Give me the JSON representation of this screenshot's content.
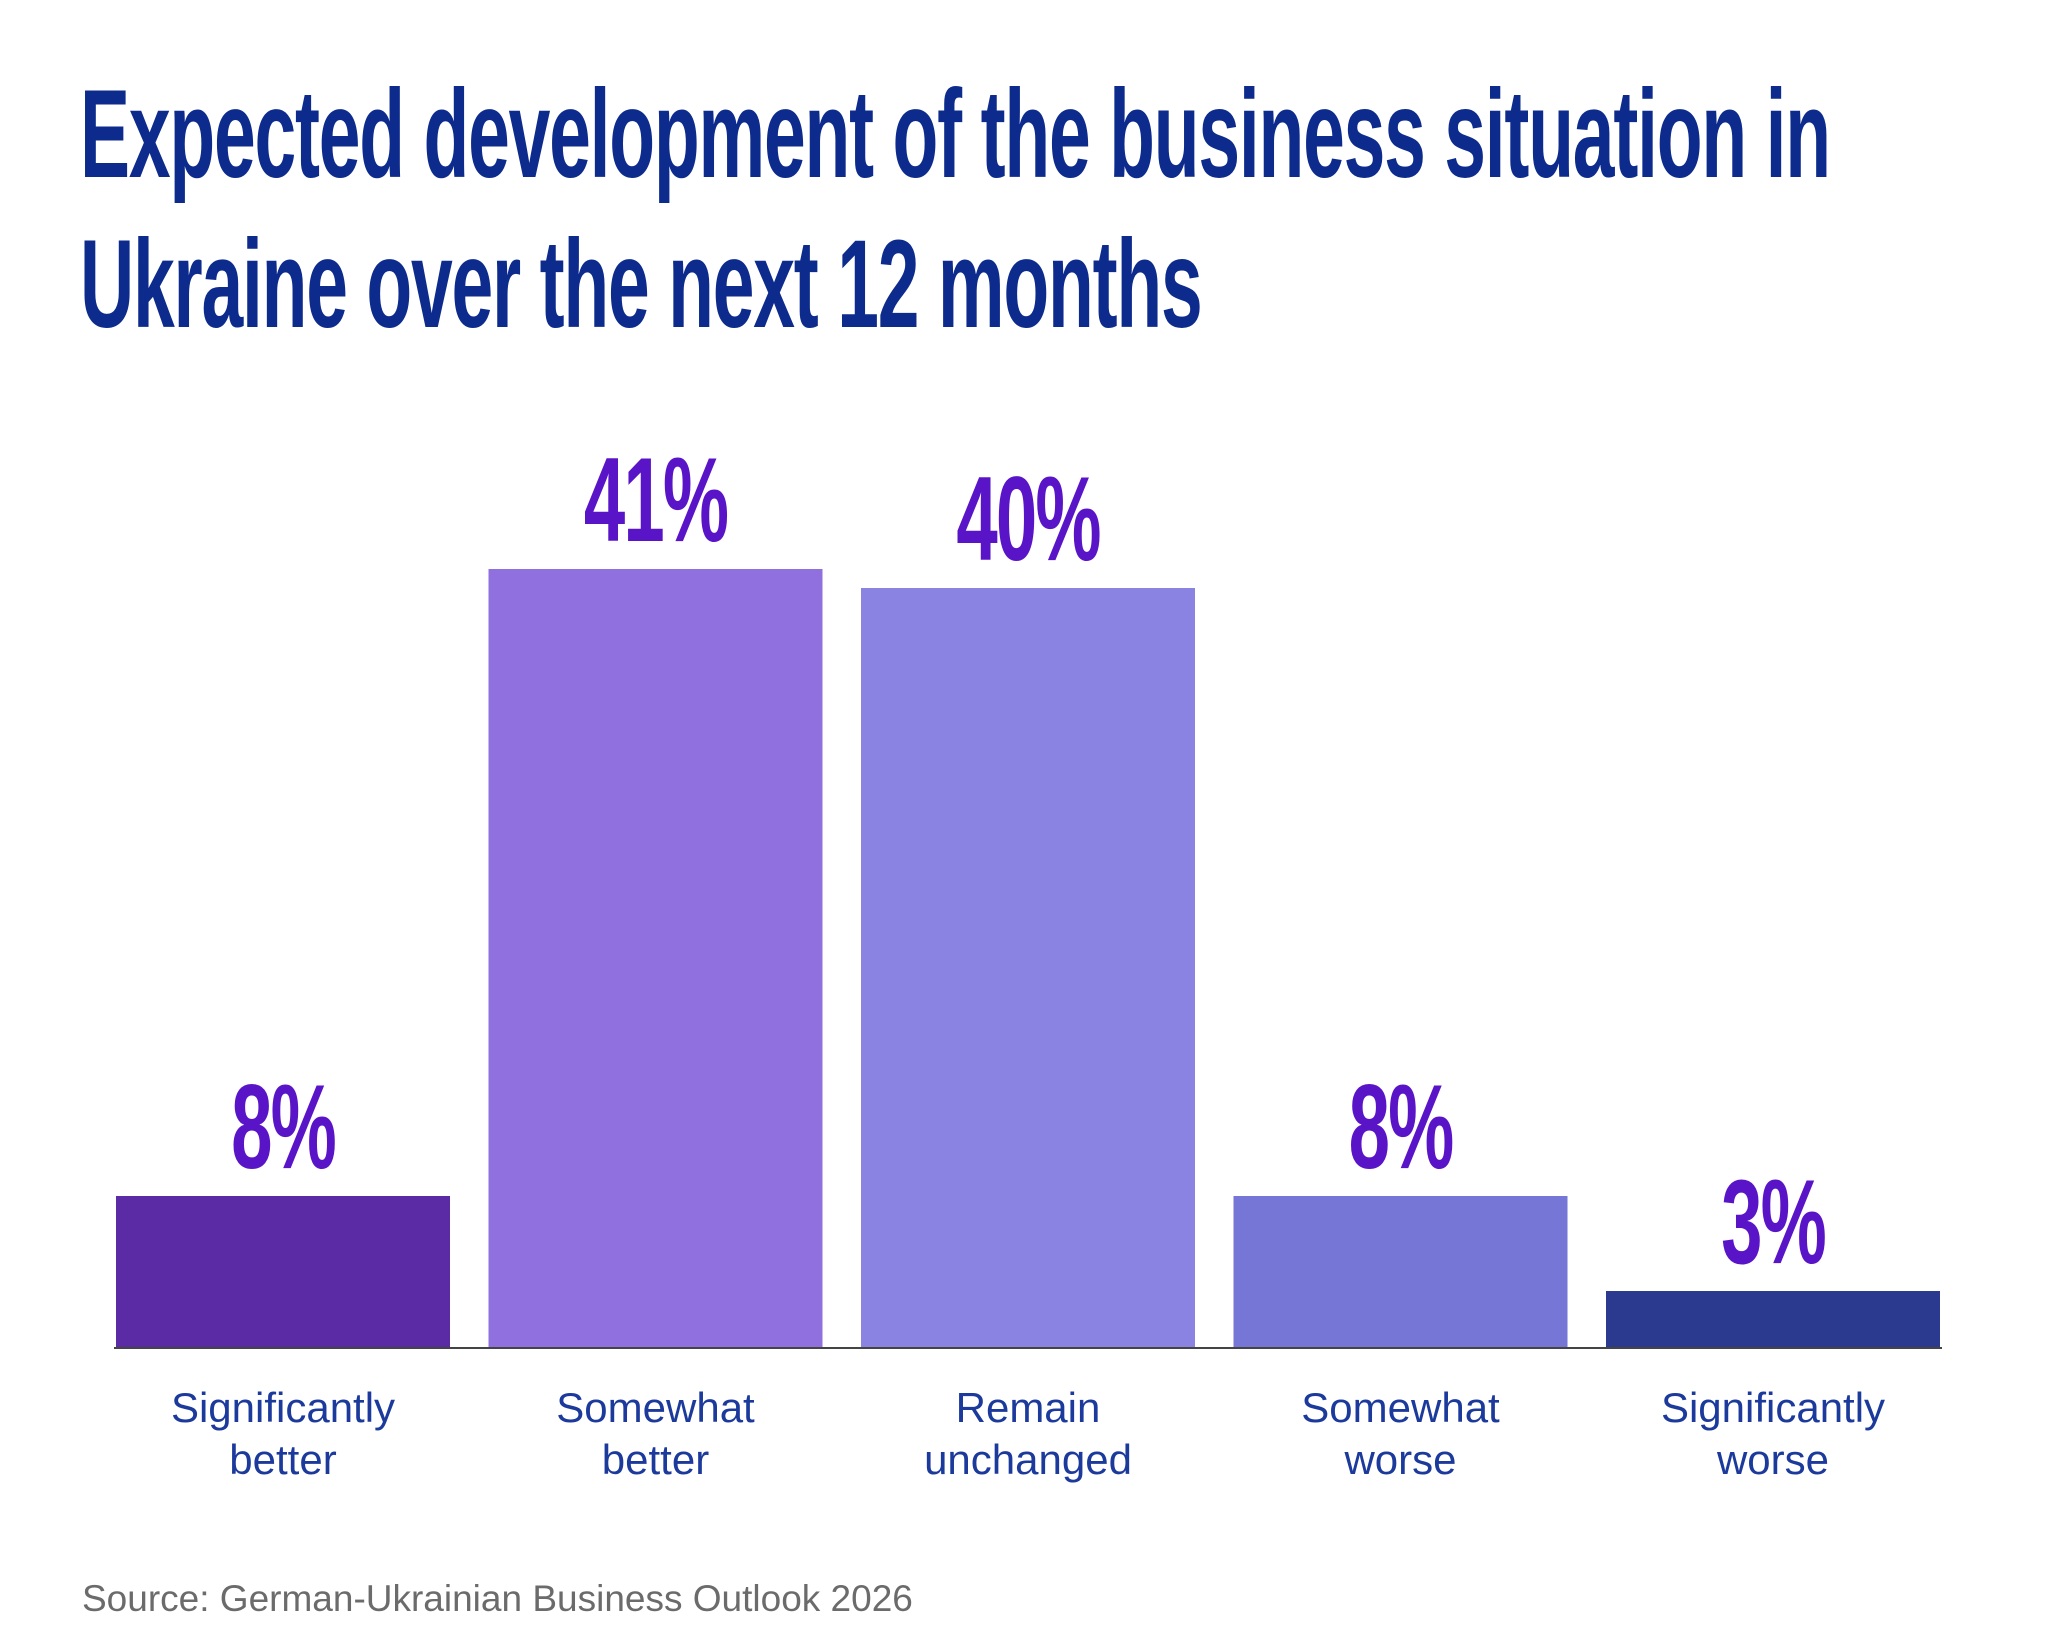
{
  "chart_data": {
    "type": "bar",
    "title": "Expected development of the business situation in Ukraine over the next 12 months",
    "categories": [
      "Significantly better",
      "Somewhat better",
      "Remain unchanged",
      "Somewhat worse",
      "Significantly worse"
    ],
    "values": [
      8,
      41,
      40,
      8,
      3
    ],
    "value_labels": [
      "8%",
      "41%",
      "40%",
      "8%",
      "3%"
    ],
    "colors": [
      "#5b2ba6",
      "#8f70de",
      "#8a83e2",
      "#7676d6",
      "#2b3a8e"
    ],
    "ylim": [
      0,
      41
    ],
    "source": "Source: German-Ukrainian Business Outlook 2026"
  }
}
